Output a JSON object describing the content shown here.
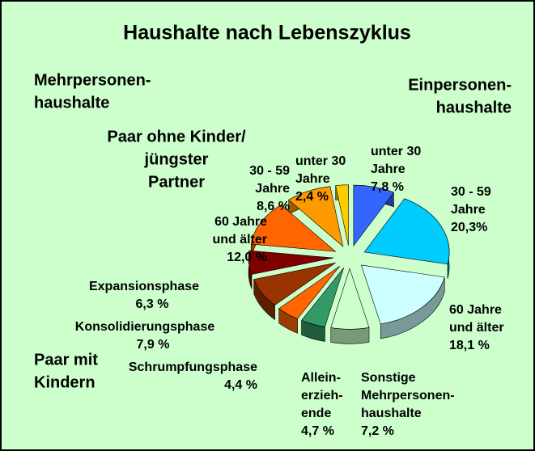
{
  "chart_data": {
    "type": "pie",
    "title": "Haushalte nach Lebenszyklus",
    "annotations": [
      {
        "lines": [
          "Mehrpersonen-",
          "haushalte"
        ]
      },
      {
        "lines": [
          "Einpersonen-",
          "haushalte"
        ]
      },
      {
        "lines": [
          "Paar ohne Kinder/",
          "jüngster",
          "Partner"
        ]
      },
      {
        "lines": [
          "Paar mit",
          "Kindern"
        ]
      }
    ],
    "categories": [
      [
        "unter 30",
        "Jahre"
      ],
      [
        "30 - 59",
        "Jahre"
      ],
      [
        "60 Jahre",
        "und älter"
      ],
      [
        "Sonstige",
        "Mehrpersonen-",
        "haushalte"
      ],
      [
        "Allein-",
        "erzieh-",
        "ende"
      ],
      [
        "Schrumpfungsphase"
      ],
      [
        "Konsolidierungsphase"
      ],
      [
        "Expansionsphase"
      ],
      [
        "60 Jahre",
        "und älter"
      ],
      [
        "30 - 59",
        "Jahre"
      ],
      [
        "unter 30",
        "Jahre"
      ]
    ],
    "values": [
      7.8,
      20.3,
      18.1,
      7.2,
      4.7,
      4.4,
      7.9,
      6.3,
      12.0,
      8.6,
      2.4
    ],
    "value_labels": [
      "7,8 %",
      "20,3%",
      "18,1 %",
      "7,2 %",
      "4,7 %",
      "4,4 %",
      "7,9 %",
      "6,3 %",
      "12,0 %",
      "8,6 %",
      "2,4 %"
    ],
    "colors": [
      "#3366ff",
      "#00ccff",
      "#ccffff",
      "#ccffcc",
      "#339966",
      "#ff6600",
      "#993300",
      "#800000",
      "#ff6600",
      "#ff9900",
      "#ffcc00"
    ]
  }
}
